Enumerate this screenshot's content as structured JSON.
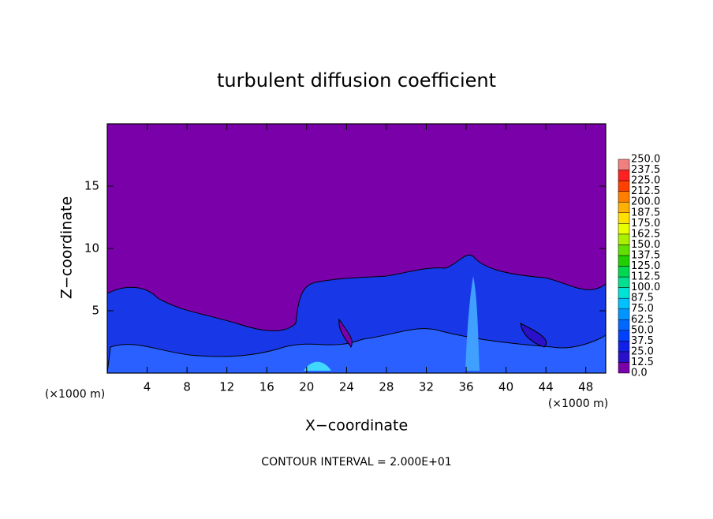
{
  "chart_data": {
    "type": "contour",
    "title": "turbulent diffusion coefficient",
    "xlabel": "X−coordinate",
    "ylabel": "Z−coordinate",
    "x_scale_labels": [
      "(×1000 m)",
      "(×1000 m)"
    ],
    "footer": "CONTOUR INTERVAL = 2.000E+01",
    "xlim": [
      0,
      50
    ],
    "xticks": [
      4,
      8,
      12,
      16,
      20,
      24,
      28,
      32,
      36,
      40,
      44,
      48
    ],
    "ylim": [
      0,
      20
    ],
    "yticks": [
      5,
      10,
      15
    ],
    "colorbar": {
      "levels": [
        {
          "value": 0,
          "label": "0.0"
        },
        12.5,
        {
          "value": 25,
          "label": "25.0"
        },
        37.5,
        {
          "value": 50,
          "label": "50.0"
        },
        62.5,
        {
          "value": 75,
          "label": "75.0"
        },
        87.5,
        {
          "value": 100,
          "label": "100.0"
        },
        112.5,
        {
          "value": 125,
          "label": "125.0"
        },
        137.5,
        {
          "value": 150,
          "label": "150.0"
        },
        162.5,
        {
          "value": 175,
          "label": "175.0"
        },
        187.5,
        {
          "value": 200,
          "label": "200.0"
        },
        212.5,
        {
          "value": 225,
          "label": "225.0"
        },
        237.5,
        {
          "value": 250,
          "label": "250.0"
        }
      ],
      "colors": [
        "#7a00aa",
        "#2a10c8",
        "#1020e8",
        "#0040ff",
        "#0068ff",
        "#0094ff",
        "#00c0ff",
        "#00e4d8",
        "#00e090",
        "#00d850",
        "#20d000",
        "#60e000",
        "#a8f000",
        "#e8ff00",
        "#ffe000",
        "#ffb000",
        "#ff8000",
        "#ff4000",
        "#ff2020",
        "#f08080"
      ]
    }
  }
}
